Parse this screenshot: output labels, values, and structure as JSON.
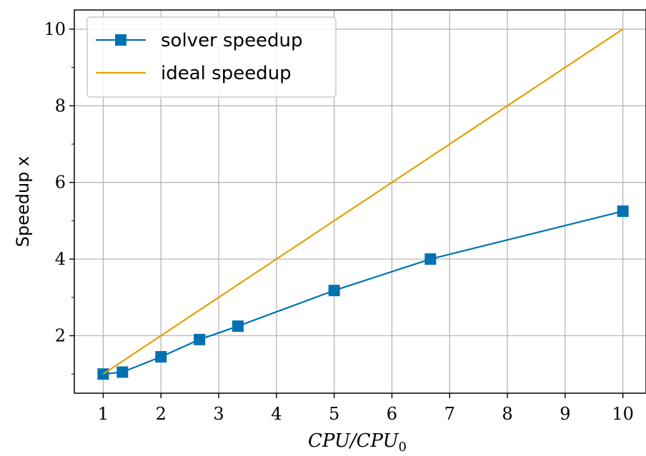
{
  "chart_data": {
    "type": "line",
    "xlabel": "CPU/CPU",
    "xlabel_subscript": "0",
    "ylabel": "Speedup x",
    "xlim": [
      0.5,
      10.4
    ],
    "ylim": [
      0.5,
      10.5
    ],
    "x_ticks": [
      1,
      2,
      3,
      4,
      5,
      6,
      7,
      8,
      9,
      10
    ],
    "y_ticks": [
      2,
      4,
      6,
      8,
      10
    ],
    "y_minor_ticks": [
      1,
      3,
      5,
      7,
      9
    ],
    "grid": true,
    "legend_position": "top-left",
    "series": [
      {
        "name": "solver speedup",
        "color": "#0072b2",
        "marker": "square",
        "x": [
          1,
          1.333,
          2,
          2.667,
          3.333,
          5,
          6.667,
          10
        ],
        "y": [
          1.0,
          1.05,
          1.45,
          1.9,
          2.25,
          3.18,
          4.0,
          5.25
        ]
      },
      {
        "name": "ideal speedup",
        "color": "#e69f00",
        "marker": "none",
        "x": [
          1,
          10
        ],
        "y": [
          1,
          10
        ]
      }
    ]
  }
}
